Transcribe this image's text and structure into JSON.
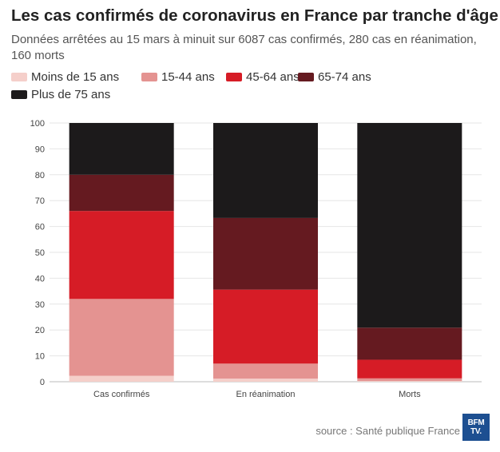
{
  "header": {
    "title": "Les cas confirmés de coronavirus en France par tranche d'âge",
    "subtitle": "Données arrêtées au 15 mars à minuit sur 6087 cas confirmés, 280 cas en réanimation, 160 morts"
  },
  "footer": {
    "source": "source : Santé publique France",
    "logo_text": "BFM TV."
  },
  "colors": {
    "Moins de 15 ans": "#f5cfca",
    "15-44 ans": "#e49391",
    "45-64 ans": "#d61c26",
    "65-74 ans": "#651a20",
    "Plus de 75 ans": "#1c1a1b"
  },
  "chart_data": {
    "type": "bar",
    "stacked": true,
    "title": "Les cas confirmés de coronavirus en France par tranche d'âge",
    "xlabel": "",
    "ylabel": "",
    "ylim": [
      0,
      100
    ],
    "yticks": [
      0,
      10,
      20,
      30,
      40,
      50,
      60,
      70,
      80,
      90,
      100
    ],
    "grid": true,
    "legend_position": "top",
    "categories": [
      "Cas confirmés",
      "En réanimation",
      "Morts"
    ],
    "series": [
      {
        "name": "Moins de 15 ans",
        "values": [
          2.3,
          1.2,
          0.3
        ]
      },
      {
        "name": "15-44 ans",
        "values": [
          29.7,
          5.8,
          1.0
        ]
      },
      {
        "name": "45-64 ans",
        "values": [
          34.0,
          28.6,
          7.2
        ]
      },
      {
        "name": "65-74 ans",
        "values": [
          14.0,
          27.7,
          12.4
        ]
      },
      {
        "name": "Plus de 75 ans",
        "values": [
          20.0,
          36.7,
          79.1
        ]
      }
    ]
  }
}
